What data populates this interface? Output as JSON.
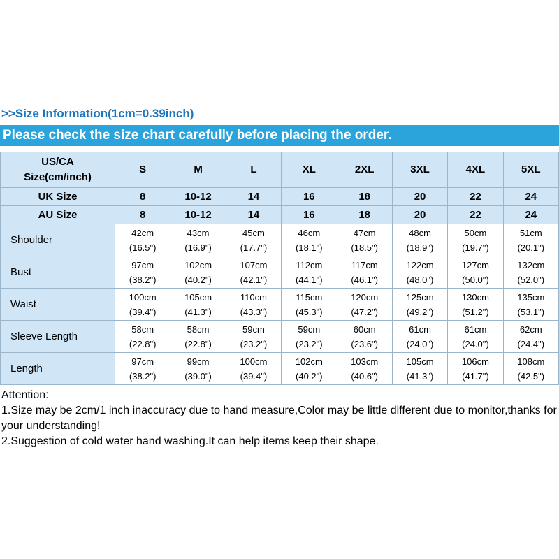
{
  "header": {
    "size_info_title": ">>Size Information(1cm=0.39inch)",
    "banner": "Please check the size chart carefully before placing the order."
  },
  "table": {
    "corner": {
      "line1": "US/CA",
      "line2": "Size(cm/inch)"
    },
    "columns": [
      "S",
      "M",
      "L",
      "XL",
      "2XL",
      "3XL",
      "4XL",
      "5XL"
    ],
    "simple_rows": [
      {
        "label": "UK Size",
        "values": [
          "8",
          "10-12",
          "14",
          "16",
          "18",
          "20",
          "22",
          "24"
        ]
      },
      {
        "label": "AU Size",
        "values": [
          "8",
          "10-12",
          "14",
          "16",
          "18",
          "20",
          "22",
          "24"
        ]
      }
    ],
    "measurement_rows": [
      {
        "label": "Shoulder",
        "cm": [
          "42cm",
          "43cm",
          "45cm",
          "46cm",
          "47cm",
          "48cm",
          "50cm",
          "51cm"
        ],
        "inch": [
          "(16.5\")",
          "(16.9\")",
          "(17.7\")",
          "(18.1\")",
          "(18.5\")",
          "(18.9\")",
          "(19.7\")",
          "(20.1\")"
        ]
      },
      {
        "label": "Bust",
        "cm": [
          "97cm",
          "102cm",
          "107cm",
          "112cm",
          "117cm",
          "122cm",
          "127cm",
          "132cm"
        ],
        "inch": [
          "(38.2\")",
          "(40.2\")",
          "(42.1\")",
          "(44.1\")",
          "(46.1\")",
          "(48.0\")",
          "(50.0\")",
          "(52.0\")"
        ]
      },
      {
        "label": "Waist",
        "cm": [
          "100cm",
          "105cm",
          "110cm",
          "115cm",
          "120cm",
          "125cm",
          "130cm",
          "135cm"
        ],
        "inch": [
          "(39.4\")",
          "(41.3\")",
          "(43.3\")",
          "(45.3\")",
          "(47.2\")",
          "(49.2\")",
          "(51.2\")",
          "(53.1\")"
        ]
      },
      {
        "label": "Sleeve Length",
        "cm": [
          "58cm",
          "58cm",
          "59cm",
          "59cm",
          "60cm",
          "61cm",
          "61cm",
          "62cm"
        ],
        "inch": [
          "(22.8\")",
          "(22.8\")",
          "(23.2\")",
          "(23.2\")",
          "(23.6\")",
          "(24.0\")",
          "(24.0\")",
          "(24.4\")"
        ]
      },
      {
        "label": "Length",
        "cm": [
          "97cm",
          "99cm",
          "100cm",
          "102cm",
          "103cm",
          "105cm",
          "106cm",
          "108cm"
        ],
        "inch": [
          "(38.2\")",
          "(39.0\")",
          "(39.4\")",
          "(40.2\")",
          "(40.6\")",
          "(41.3\")",
          "(41.7\")",
          "(42.5\")"
        ]
      }
    ]
  },
  "attention": {
    "title": "Attention:",
    "notes": [
      "1.Size may be 2cm/1 inch inaccuracy due to hand measure,Color may be little different due to monitor,thanks for your understanding!",
      "2.Suggestion of cold water hand washing.It can help items keep their shape."
    ]
  },
  "colors": {
    "title_blue": "#1b76bc",
    "banner_blue": "#2ba4dc",
    "cell_blue": "#d0e6f6",
    "grid_line": "#9db5c8"
  }
}
